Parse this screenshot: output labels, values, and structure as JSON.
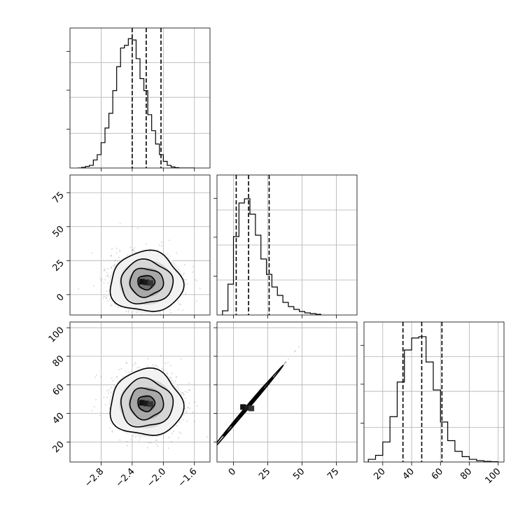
{
  "chart_data": [
    {
      "panel": "hist-p0",
      "type": "histogram",
      "variable": "p0",
      "bins_x": [
        -3.1,
        -3.05,
        -3.0,
        -2.95,
        -2.9,
        -2.85,
        -2.8,
        -2.75,
        -2.7,
        -2.65,
        -2.6,
        -2.55,
        -2.5,
        -2.45,
        -2.4,
        -2.35,
        -2.3,
        -2.25,
        -2.2,
        -2.15,
        -2.1,
        -2.05,
        -2.0,
        -1.95,
        -1.9,
        -1.85,
        -1.8,
        -1.75,
        -1.7,
        -1.65,
        -1.6
      ],
      "values": [
        0,
        0.005,
        0.012,
        0.02,
        0.06,
        0.1,
        0.19,
        0.3,
        0.41,
        0.58,
        0.76,
        0.9,
        0.92,
        0.97,
        0.96,
        0.82,
        0.67,
        0.58,
        0.4,
        0.28,
        0.18,
        0.1,
        0.05,
        0.02,
        0.008,
        0.003,
        0,
        0,
        0,
        0
      ],
      "quantile_lines": [
        -2.4,
        -2.22,
        -2.03
      ],
      "xlim": [
        -3.2,
        -1.4
      ],
      "ylim": [
        0,
        1.05
      ],
      "grid": true
    },
    {
      "panel": "hist-p1",
      "type": "histogram",
      "variable": "p1",
      "bins_x": [
        -8,
        -4,
        0,
        4,
        8,
        12,
        16,
        20,
        24,
        28,
        32,
        36,
        40,
        44,
        48,
        52,
        56,
        60,
        64
      ],
      "values": [
        0.03,
        0.22,
        0.56,
        0.8,
        0.83,
        0.72,
        0.57,
        0.4,
        0.29,
        0.2,
        0.14,
        0.09,
        0.06,
        0.04,
        0.025,
        0.015,
        0.01,
        0.005
      ],
      "quantile_lines": [
        2,
        11,
        26
      ],
      "xlim": [
        -12,
        90
      ],
      "ylim": [
        0,
        1.0
      ],
      "xticks": [
        "0",
        "25",
        "50",
        "75"
      ],
      "grid": true
    },
    {
      "panel": "hist-p2",
      "type": "histogram",
      "variable": "p2",
      "bins_x": [
        10,
        15,
        20,
        25,
        30,
        35,
        40,
        45,
        50,
        55,
        60,
        65,
        70,
        75,
        80,
        85,
        90,
        95,
        100
      ],
      "values": [
        0.02,
        0.05,
        0.15,
        0.34,
        0.6,
        0.84,
        0.93,
        0.94,
        0.75,
        0.54,
        0.3,
        0.16,
        0.08,
        0.04,
        0.02,
        0.01,
        0.005,
        0.002
      ],
      "quantile_lines": [
        34,
        47,
        61
      ],
      "xlim": [
        7,
        104
      ],
      "ylim": [
        0,
        1.05
      ],
      "xticks": [
        "20",
        "40",
        "60",
        "80",
        "100"
      ],
      "grid": true
    },
    {
      "panel": "scatter-p0-p1",
      "type": "scatter",
      "x_variable": "p0",
      "y_variable": "p1",
      "center": [
        -2.22,
        9
      ],
      "contour_levels": 4,
      "xlim": [
        -3.2,
        -1.4
      ],
      "ylim": [
        -15,
        88
      ],
      "yticks": [
        "0",
        "25",
        "50",
        "75"
      ],
      "grid": true
    },
    {
      "panel": "scatter-p0-p2",
      "type": "scatter",
      "x_variable": "p0",
      "y_variable": "p2",
      "center": [
        -2.22,
        47
      ],
      "contour_levels": 4,
      "xlim": [
        -3.2,
        -1.4
      ],
      "ylim": [
        6,
        104
      ],
      "xticks": [
        "−2.8",
        "−2.4",
        "−2.0",
        "−1.6"
      ],
      "yticks": [
        "20",
        "40",
        "60",
        "80",
        "100"
      ],
      "grid": true
    },
    {
      "panel": "scatter-p1-p2",
      "type": "scatter",
      "x_variable": "p1",
      "y_variable": "p2",
      "center": [
        10,
        44
      ],
      "contour_levels": 4,
      "xlim": [
        -12,
        90
      ],
      "ylim": [
        6,
        104
      ],
      "xticks": [
        "0",
        "25",
        "50",
        "75"
      ],
      "grid": true
    }
  ],
  "colors": {
    "line": "#000000",
    "grid": "#b0b0b0",
    "scatter": "#555555",
    "background": "#ffffff"
  }
}
